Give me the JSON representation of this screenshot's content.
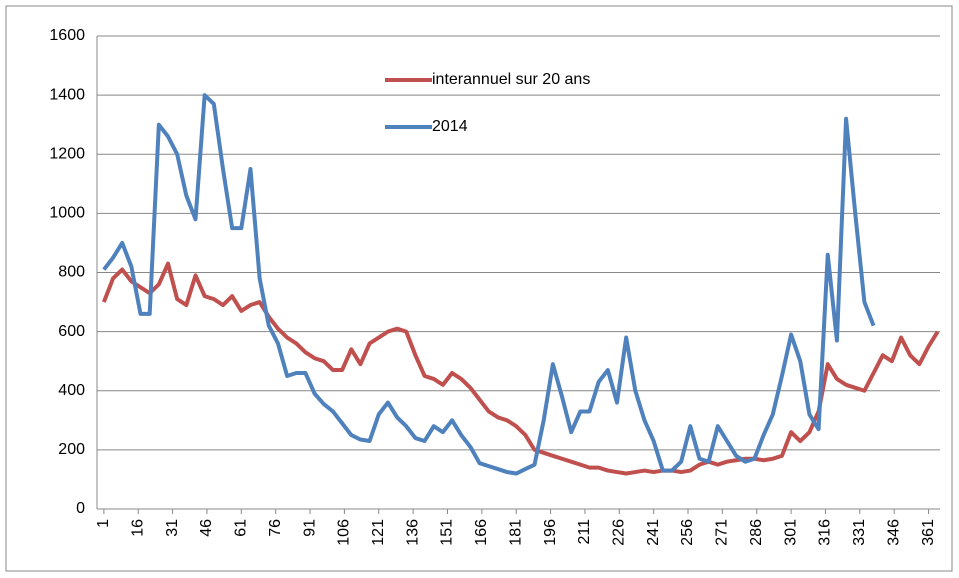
{
  "chart_data": {
    "type": "line",
    "x": [
      1,
      5,
      9,
      13,
      17,
      21,
      25,
      29,
      33,
      37,
      41,
      45,
      49,
      53,
      57,
      61,
      65,
      69,
      73,
      77,
      81,
      85,
      89,
      93,
      97,
      101,
      105,
      109,
      113,
      117,
      121,
      125,
      129,
      133,
      137,
      141,
      145,
      149,
      153,
      157,
      161,
      165,
      169,
      173,
      177,
      181,
      185,
      189,
      193,
      197,
      201,
      205,
      209,
      213,
      217,
      221,
      225,
      229,
      233,
      237,
      241,
      245,
      249,
      253,
      257,
      261,
      265,
      269,
      273,
      277,
      281,
      285,
      289,
      293,
      297,
      301,
      305,
      309,
      313,
      317,
      321,
      325,
      329,
      333,
      337,
      341,
      345,
      349,
      353,
      357,
      361,
      365
    ],
    "series": [
      {
        "name": "interannuel sur 20 ans",
        "color": "#c0504d",
        "values": [
          700,
          780,
          810,
          770,
          750,
          730,
          760,
          830,
          710,
          690,
          790,
          720,
          710,
          690,
          720,
          670,
          690,
          700,
          650,
          610,
          580,
          560,
          530,
          510,
          500,
          470,
          470,
          540,
          490,
          560,
          580,
          600,
          610,
          600,
          520,
          450,
          440,
          420,
          460,
          440,
          410,
          370,
          330,
          310,
          300,
          280,
          250,
          200,
          190,
          180,
          170,
          160,
          150,
          140,
          140,
          130,
          125,
          120,
          125,
          130,
          125,
          130,
          130,
          125,
          130,
          150,
          160,
          150,
          160,
          165,
          170,
          170,
          165,
          170,
          180,
          260,
          230,
          260,
          330,
          490,
          440,
          420,
          410,
          400,
          460,
          520,
          500,
          580,
          520,
          490,
          550,
          600
        ]
      },
      {
        "name": "2014",
        "color": "#4f81bd",
        "values": [
          810,
          850,
          900,
          820,
          660,
          660,
          1300,
          1260,
          1200,
          1060,
          980,
          1400,
          1370,
          1150,
          950,
          950,
          1150,
          780,
          620,
          560,
          450,
          460,
          460,
          390,
          355,
          330,
          290,
          250,
          235,
          230,
          320,
          360,
          310,
          280,
          240,
          230,
          280,
          260,
          300,
          250,
          210,
          155,
          145,
          135,
          125,
          120,
          135,
          150,
          300,
          490,
          380,
          260,
          330,
          330,
          430,
          470,
          360,
          580,
          400,
          300,
          230,
          130,
          130,
          160,
          280,
          170,
          160,
          280,
          230,
          180,
          160,
          170,
          250,
          320,
          450,
          590,
          500,
          320,
          270,
          860,
          570,
          1320,
          1000,
          700,
          620,
          null,
          null,
          null,
          null,
          null,
          null,
          null
        ]
      }
    ],
    "xlim": [
      -2,
      366
    ],
    "xticks": [
      1,
      16,
      31,
      46,
      61,
      76,
      91,
      106,
      121,
      136,
      151,
      166,
      181,
      196,
      211,
      226,
      241,
      256,
      271,
      286,
      301,
      316,
      331,
      346,
      361
    ],
    "ylim": [
      0,
      1600
    ],
    "yticks": [
      0,
      200,
      400,
      600,
      800,
      1000,
      1200,
      1400,
      1600
    ],
    "grid": true
  }
}
